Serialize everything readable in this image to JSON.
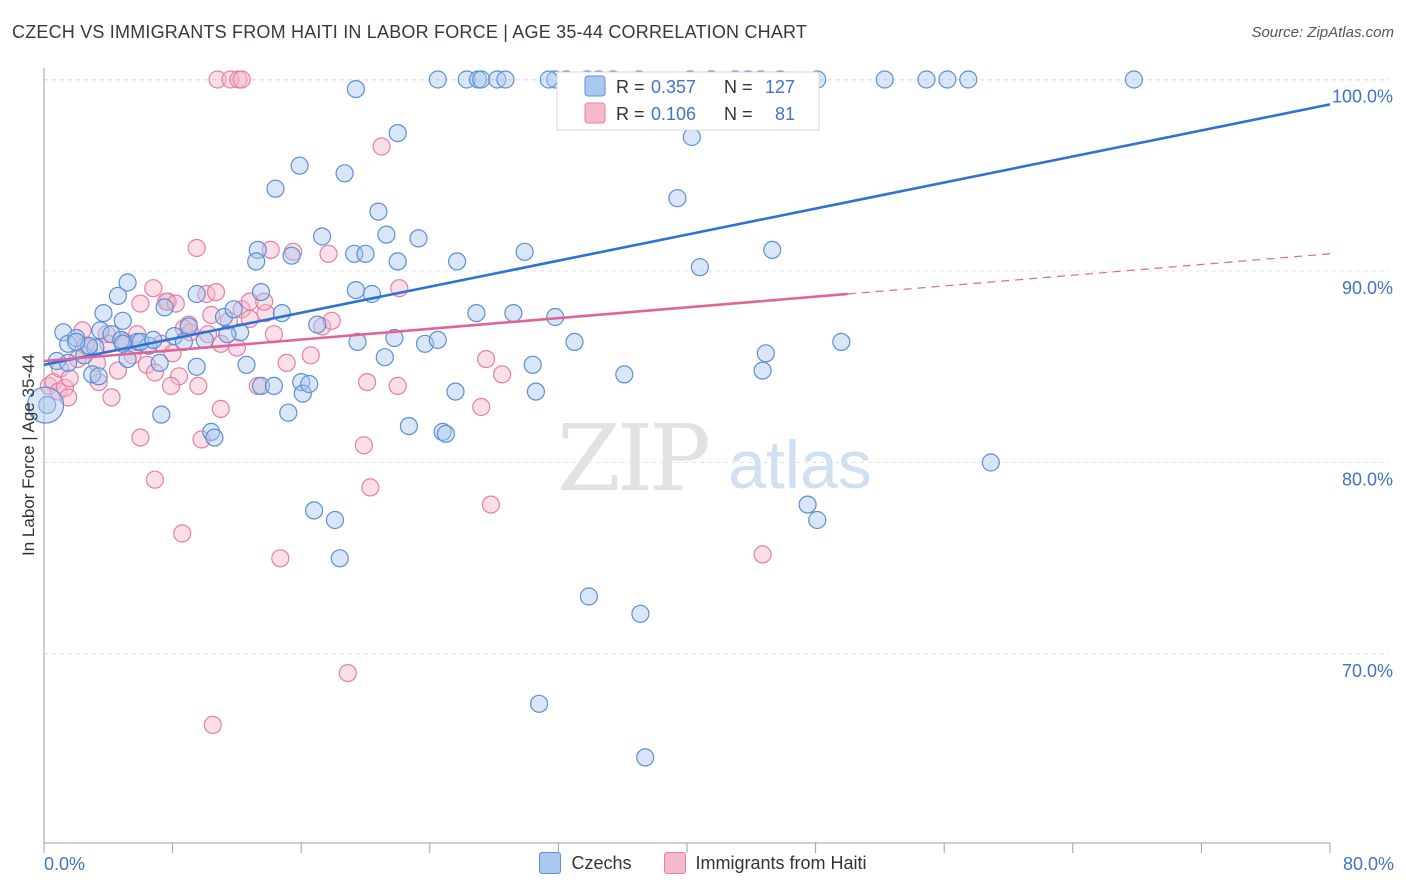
{
  "header": {
    "title": "CZECH VS IMMIGRANTS FROM HAITI IN LABOR FORCE | AGE 35-44 CORRELATION CHART",
    "source": "Source: ZipAtlas.com"
  },
  "watermark": {
    "zip": "ZIP",
    "atlas": "atlas"
  },
  "colors": {
    "czech_fill": "#a9c8ee",
    "czech_stroke": "#5b8fd6",
    "czech_line": "#2e72d2",
    "haiti_fill": "#f5b8cc",
    "haiti_stroke": "#e77fa2",
    "haiti_line": "#e0649a",
    "axis_label": "#3f74c6"
  },
  "stats_legend": [
    {
      "r_label": "R =",
      "r_value": "0.357",
      "n_label": "N =",
      "n_value": "127"
    },
    {
      "r_label": "R =",
      "r_value": "0.106",
      "n_label": "N =",
      "n_value": "81"
    }
  ],
  "chart_data": {
    "type": "scatter",
    "title": "CZECH VS IMMIGRANTS FROM HAITI IN LABOR FORCE | AGE 35-44 CORRELATION CHART",
    "xlabel": "",
    "ylabel": "In Labor Force | Age 35-44",
    "xlim": [
      0,
      80
    ],
    "ylim": [
      60,
      102
    ],
    "x_tick_labels": [
      "0.0%",
      "80.0%"
    ],
    "y_ticks": [
      70,
      80,
      90,
      100
    ],
    "y_tick_labels": [
      "70.0%",
      "80.0%",
      "90.0%",
      "100.0%"
    ],
    "legend_position": "bottom",
    "grid": true,
    "series": [
      {
        "name": "Czechs",
        "trend": {
          "x": [
            0,
            80
          ],
          "y": [
            85.1,
            98.7
          ]
        },
        "points": [
          [
            0.2,
            83.0
          ],
          [
            0.8,
            85.3
          ],
          [
            1.2,
            86.8
          ],
          [
            1.5,
            86.2
          ],
          [
            2.0,
            86.5
          ],
          [
            2.5,
            85.6
          ],
          [
            3.0,
            84.6
          ],
          [
            3.2,
            86.0
          ],
          [
            3.5,
            86.9
          ],
          [
            4.2,
            86.7
          ],
          [
            4.8,
            86.4
          ],
          [
            5.2,
            85.4
          ],
          [
            5.8,
            86.3
          ],
          [
            6.5,
            86.1
          ],
          [
            7.2,
            85.2
          ],
          [
            8.1,
            86.6
          ],
          [
            9.0,
            87.1
          ],
          [
            10.0,
            86.4
          ],
          [
            11.2,
            87.6
          ],
          [
            12.2,
            86.8
          ],
          [
            3.7,
            87.8
          ],
          [
            4.6,
            88.7
          ],
          [
            5.2,
            89.4
          ],
          [
            4.9,
            87.4
          ],
          [
            7.5,
            88.1
          ],
          [
            9.5,
            88.8
          ],
          [
            11.8,
            88.0
          ],
          [
            13.5,
            88.9
          ],
          [
            14.8,
            87.8
          ],
          [
            17.0,
            87.2
          ],
          [
            19.4,
            89.0
          ],
          [
            20.4,
            88.8
          ],
          [
            21.8,
            86.5
          ],
          [
            23.7,
            86.2
          ],
          [
            24.5,
            86.4
          ],
          [
            30.4,
            85.1
          ],
          [
            33.0,
            86.3
          ],
          [
            36.1,
            84.6
          ],
          [
            26.9,
            87.8
          ],
          [
            29.2,
            87.8
          ],
          [
            31.8,
            87.6
          ],
          [
            6.0,
            86.3
          ],
          [
            8.7,
            86.3
          ],
          [
            12.6,
            85.1
          ],
          [
            13.5,
            84.0
          ],
          [
            14.3,
            84.0
          ],
          [
            16.0,
            84.2
          ],
          [
            16.1,
            83.6
          ],
          [
            15.2,
            82.6
          ],
          [
            7.3,
            82.5
          ],
          [
            10.4,
            81.6
          ],
          [
            10.6,
            81.3
          ],
          [
            22.7,
            81.9
          ],
          [
            24.8,
            81.6
          ],
          [
            25.0,
            81.5
          ],
          [
            25.6,
            83.7
          ],
          [
            30.6,
            83.7
          ],
          [
            21.2,
            85.5
          ],
          [
            13.3,
            91.1
          ],
          [
            13.2,
            90.5
          ],
          [
            15.4,
            90.8
          ],
          [
            19.3,
            90.9
          ],
          [
            20.0,
            90.9
          ],
          [
            22.0,
            90.5
          ],
          [
            25.7,
            90.5
          ],
          [
            29.9,
            91.0
          ],
          [
            17.3,
            91.8
          ],
          [
            21.3,
            91.9
          ],
          [
            23.3,
            91.7
          ],
          [
            20.8,
            93.1
          ],
          [
            14.4,
            94.3
          ],
          [
            15.9,
            95.5
          ],
          [
            18.7,
            95.1
          ],
          [
            22.0,
            97.2
          ],
          [
            19.4,
            99.5
          ],
          [
            24.5,
            100.0
          ],
          [
            26.3,
            100.0
          ],
          [
            27.0,
            100.0
          ],
          [
            27.2,
            100.0
          ],
          [
            28.2,
            100.0
          ],
          [
            28.7,
            100.0
          ],
          [
            31.8,
            100.0
          ],
          [
            31.4,
            100.0
          ],
          [
            32.5,
            100.0
          ],
          [
            33.8,
            100.0
          ],
          [
            34.5,
            100.0
          ],
          [
            35.4,
            100.0
          ],
          [
            37.0,
            100.0
          ],
          [
            40.2,
            100.0
          ],
          [
            41.5,
            100.0
          ],
          [
            43.0,
            100.0
          ],
          [
            43.8,
            100.0
          ],
          [
            44.6,
            100.0
          ],
          [
            45.8,
            100.0
          ],
          [
            48.1,
            100.0
          ],
          [
            52.3,
            100.0
          ],
          [
            54.9,
            100.0
          ],
          [
            56.2,
            100.0
          ],
          [
            57.5,
            100.0
          ],
          [
            67.8,
            100.0
          ],
          [
            40.3,
            97.0
          ],
          [
            39.4,
            93.8
          ],
          [
            40.8,
            90.2
          ],
          [
            45.3,
            91.1
          ],
          [
            44.7,
            84.8
          ],
          [
            44.9,
            85.7
          ],
          [
            49.6,
            86.3
          ],
          [
            58.9,
            80.0
          ],
          [
            47.5,
            77.8
          ],
          [
            48.1,
            77.0
          ],
          [
            16.8,
            77.5
          ],
          [
            18.1,
            77.0
          ],
          [
            18.4,
            75.0
          ],
          [
            33.9,
            73.0
          ],
          [
            37.1,
            72.1
          ],
          [
            30.8,
            67.4
          ],
          [
            37.4,
            64.6
          ],
          [
            3.4,
            84.5
          ],
          [
            6.8,
            86.4
          ],
          [
            9.5,
            85.0
          ],
          [
            11.4,
            86.7
          ],
          [
            19.5,
            86.3
          ],
          [
            4.9,
            86.2
          ],
          [
            2.8,
            86.1
          ],
          [
            1.5,
            85.2
          ],
          [
            2.0,
            86.3
          ],
          [
            16.5,
            84.1
          ]
        ]
      },
      {
        "name": "Immigrants from Haiti",
        "trend": {
          "x": [
            0,
            50
          ],
          "y": [
            85.3,
            88.8
          ]
        },
        "points": [
          [
            0.3,
            84.0
          ],
          [
            0.6,
            84.2
          ],
          [
            0.9,
            83.7
          ],
          [
            1.0,
            84.9
          ],
          [
            1.3,
            83.9
          ],
          [
            1.6,
            84.4
          ],
          [
            2.1,
            85.4
          ],
          [
            2.4,
            86.9
          ],
          [
            2.6,
            86.1
          ],
          [
            3.4,
            84.2
          ],
          [
            3.9,
            86.7
          ],
          [
            4.2,
            83.4
          ],
          [
            4.6,
            84.8
          ],
          [
            5.0,
            86.3
          ],
          [
            5.5,
            85.6
          ],
          [
            5.8,
            86.7
          ],
          [
            6.4,
            85.1
          ],
          [
            6.9,
            84.7
          ],
          [
            7.3,
            86.2
          ],
          [
            7.7,
            88.4
          ],
          [
            8.0,
            85.7
          ],
          [
            8.4,
            84.5
          ],
          [
            8.7,
            87.0
          ],
          [
            9.1,
            86.8
          ],
          [
            9.6,
            84.0
          ],
          [
            10.1,
            88.8
          ],
          [
            10.4,
            87.7
          ],
          [
            11.0,
            86.2
          ],
          [
            11.5,
            87.4
          ],
          [
            12.0,
            86.0
          ],
          [
            12.3,
            88.0
          ],
          [
            12.8,
            87.5
          ],
          [
            13.3,
            84.0
          ],
          [
            13.8,
            87.8
          ],
          [
            14.3,
            86.7
          ],
          [
            15.1,
            85.2
          ],
          [
            15.5,
            91.0
          ],
          [
            16.6,
            85.6
          ],
          [
            17.3,
            87.1
          ],
          [
            17.7,
            90.9
          ],
          [
            6.0,
            88.3
          ],
          [
            6.8,
            89.1
          ],
          [
            7.6,
            88.4
          ],
          [
            8.2,
            88.3
          ],
          [
            9.5,
            91.2
          ],
          [
            10.7,
            88.9
          ],
          [
            12.8,
            88.4
          ],
          [
            13.7,
            88.4
          ],
          [
            17.9,
            87.4
          ],
          [
            22.1,
            89.1
          ],
          [
            21.0,
            96.5
          ],
          [
            10.8,
            100.0
          ],
          [
            11.6,
            100.0
          ],
          [
            12.1,
            100.0
          ],
          [
            12.3,
            100.0
          ],
          [
            14.1,
            91.1
          ],
          [
            6.0,
            81.3
          ],
          [
            6.9,
            79.1
          ],
          [
            9.8,
            81.2
          ],
          [
            11.0,
            82.8
          ],
          [
            8.6,
            76.3
          ],
          [
            14.7,
            75.0
          ],
          [
            19.9,
            80.9
          ],
          [
            20.3,
            78.7
          ],
          [
            27.2,
            82.9
          ],
          [
            27.8,
            77.8
          ],
          [
            28.5,
            84.6
          ],
          [
            27.5,
            85.4
          ],
          [
            22.0,
            84.0
          ],
          [
            20.1,
            84.2
          ],
          [
            18.9,
            69.0
          ],
          [
            10.5,
            66.3
          ],
          [
            44.7,
            75.2
          ],
          [
            1.5,
            83.4
          ],
          [
            2.8,
            86.0
          ],
          [
            3.3,
            85.2
          ],
          [
            4.0,
            86.2
          ],
          [
            5.0,
            86.3
          ],
          [
            7.9,
            84.0
          ],
          [
            9.0,
            87.2
          ],
          [
            10.2,
            86.7
          ]
        ]
      }
    ]
  },
  "bottom_legend": [
    {
      "label": "Czechs"
    },
    {
      "label": "Immigrants from Haiti"
    }
  ]
}
